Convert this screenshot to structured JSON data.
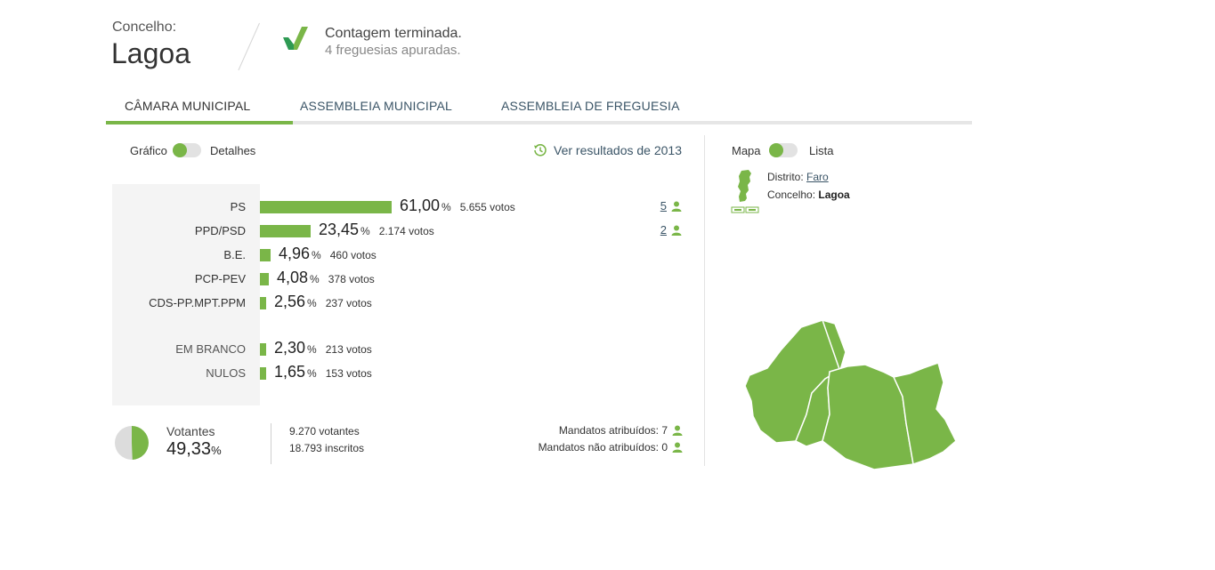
{
  "header": {
    "concelho_label": "Concelho:",
    "concelho_name": "Lagoa",
    "status_title": "Contagem terminada.",
    "status_sub": "4 freguesias apuradas.",
    "status_icon": "check-icon"
  },
  "tabs": [
    {
      "label": "CÂMARA MUNICIPAL",
      "active": true
    },
    {
      "label": "ASSEMBLEIA MUNICIPAL",
      "active": false
    },
    {
      "label": "ASSEMBLEIA DE FREGUESIA",
      "active": false
    }
  ],
  "view_toggle": {
    "left": "Gráfico",
    "right": "Detalhes"
  },
  "history_link": "Ver resultados de 2013",
  "results": [
    {
      "party": "PS",
      "pct": "61,00",
      "votes": "5.655 votos",
      "share": 61.0,
      "mandates": "5"
    },
    {
      "party": "PPD/PSD",
      "pct": "23,45",
      "votes": "2.174 votos",
      "share": 23.45,
      "mandates": "2"
    },
    {
      "party": "B.E.",
      "pct": "4,96",
      "votes": "460 votos",
      "share": 4.96
    },
    {
      "party": "PCP-PEV",
      "pct": "4,08",
      "votes": "378 votos",
      "share": 4.08
    },
    {
      "party": "CDS-PP.MPT.PPM",
      "pct": "2,56",
      "votes": "237 votos",
      "share": 2.56
    }
  ],
  "blank_null": [
    {
      "party": "EM BRANCO",
      "pct": "2,30",
      "votes": "213 votos",
      "share": 2.3
    },
    {
      "party": "NULOS",
      "pct": "1,65",
      "votes": "153 votos",
      "share": 1.65
    }
  ],
  "pct_symbol": "%",
  "turnout": {
    "label": "Votantes",
    "pct": "49,33",
    "share": 49.33,
    "votantes": "9.270 votantes",
    "inscritos": "18.793 inscritos"
  },
  "mandates_summary": {
    "attributed": "Mandatos atribuídos: 7",
    "not_attributed": "Mandatos não atribuídos: 0"
  },
  "map_toggle": {
    "left": "Mapa",
    "right": "Lista"
  },
  "location": {
    "distrito_label": "Distrito:",
    "distrito": "Faro",
    "concelho_label": "Concelho:",
    "concelho": "Lagoa"
  },
  "colors": {
    "accent": "#7ab648",
    "link": "#3b5567",
    "map_fill": "#7ab648"
  }
}
